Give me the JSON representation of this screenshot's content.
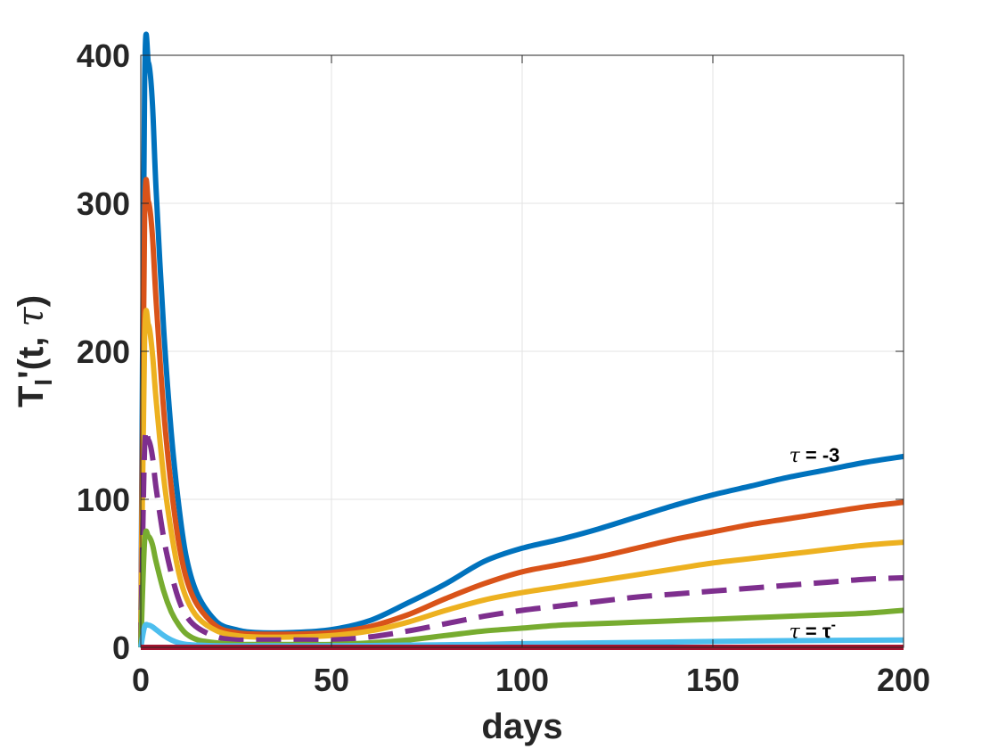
{
  "chart_data": {
    "type": "line",
    "title": "",
    "xlabel": "days",
    "ylabel": "T_I'(t, τ)",
    "ylabel_parts": {
      "base": "T",
      "sub": "I",
      "prime": "'",
      "open": "(t, ",
      "tau": "τ",
      "close": ")"
    },
    "xlim": [
      0,
      200
    ],
    "ylim": [
      0,
      400
    ],
    "xticks": [
      0,
      50,
      100,
      150,
      200
    ],
    "yticks": [
      0,
      100,
      200,
      300,
      400
    ],
    "grid": true,
    "annotations": [
      {
        "text": "τ = -3",
        "sym": "τ",
        "rest": " = -3",
        "x": 170,
        "y": 124
      },
      {
        "text": "τ = τ₀⁻",
        "sym": "τ",
        "rest": " = τ",
        "sup": "-",
        "x": 170,
        "y": 5
      }
    ],
    "series": [
      {
        "color": "#0072BD",
        "dash": "solid",
        "x": [
          0,
          1,
          2,
          3,
          4,
          6,
          8,
          10,
          12,
          15,
          20,
          25,
          30,
          40,
          50,
          60,
          70,
          80,
          90,
          100,
          110,
          120,
          130,
          140,
          150,
          160,
          170,
          180,
          190,
          200
        ],
        "y": [
          0,
          380,
          395,
          370,
          310,
          215,
          145,
          95,
          60,
          35,
          17,
          12,
          10,
          10,
          12,
          18,
          30,
          43,
          58,
          67,
          73,
          80,
          88,
          96,
          103,
          109,
          115,
          120,
          125,
          129
        ]
      },
      {
        "color": "#D95319",
        "dash": "solid",
        "x": [
          0,
          1,
          2,
          3,
          4,
          6,
          8,
          10,
          12,
          15,
          20,
          25,
          30,
          40,
          50,
          60,
          70,
          80,
          90,
          100,
          110,
          120,
          130,
          140,
          150,
          160,
          170,
          180,
          190,
          200
        ],
        "y": [
          0,
          290,
          301,
          280,
          235,
          160,
          108,
          70,
          46,
          28,
          14,
          10,
          9,
          9,
          10,
          14,
          22,
          33,
          43,
          51,
          56,
          61,
          67,
          73,
          78,
          83,
          87,
          91,
          95,
          98
        ]
      },
      {
        "color": "#EDB120",
        "dash": "solid",
        "x": [
          0,
          1,
          2,
          3,
          4,
          6,
          8,
          10,
          12,
          15,
          20,
          25,
          30,
          40,
          50,
          60,
          70,
          80,
          90,
          100,
          110,
          120,
          130,
          140,
          150,
          160,
          170,
          180,
          190,
          200
        ],
        "y": [
          0,
          208,
          218,
          200,
          168,
          115,
          78,
          50,
          33,
          20,
          11,
          8,
          7,
          7,
          8,
          11,
          17,
          25,
          32,
          37,
          41,
          45,
          49,
          53,
          57,
          60,
          63,
          66,
          69,
          71
        ]
      },
      {
        "color": "#7E2F8E",
        "dash": "dashed",
        "x": [
          0,
          1,
          2,
          3,
          4,
          6,
          8,
          10,
          12,
          15,
          20,
          25,
          30,
          40,
          50,
          60,
          70,
          80,
          90,
          100,
          110,
          120,
          130,
          140,
          150,
          160,
          170,
          180,
          190,
          200
        ],
        "y": [
          0,
          135,
          140,
          130,
          108,
          74,
          50,
          32,
          21,
          13,
          7,
          5,
          5,
          5,
          5,
          7,
          11,
          16,
          21,
          25,
          28,
          31,
          34,
          36,
          38,
          40,
          42,
          44,
          46,
          47
        ]
      },
      {
        "color": "#77AC30",
        "dash": "solid",
        "x": [
          0,
          1,
          2,
          3,
          4,
          6,
          8,
          10,
          12,
          15,
          20,
          25,
          30,
          40,
          50,
          60,
          70,
          80,
          90,
          100,
          110,
          120,
          130,
          140,
          150,
          160,
          170,
          180,
          190,
          200
        ],
        "y": [
          0,
          72,
          75,
          70,
          58,
          38,
          24,
          15,
          9,
          5,
          3,
          2,
          2,
          2,
          2,
          3,
          5,
          8,
          11,
          13,
          15,
          16,
          17,
          18,
          19,
          20,
          21,
          22,
          23,
          25
        ]
      },
      {
        "color": "#4DBEEE",
        "dash": "solid",
        "x": [
          0,
          1,
          2,
          3,
          4,
          6,
          8,
          10,
          12,
          15,
          20,
          30,
          50,
          70,
          90,
          100,
          120,
          150,
          170,
          200
        ],
        "y": [
          0,
          14,
          15,
          14,
          12,
          8,
          5,
          3,
          2,
          1.5,
          1,
          1,
          1,
          1.5,
          2,
          2.5,
          3,
          4,
          4.5,
          5
        ]
      },
      {
        "color": "#A2142F",
        "dash": "solid",
        "x": [
          0,
          200
        ],
        "y": [
          0,
          0
        ]
      }
    ]
  }
}
